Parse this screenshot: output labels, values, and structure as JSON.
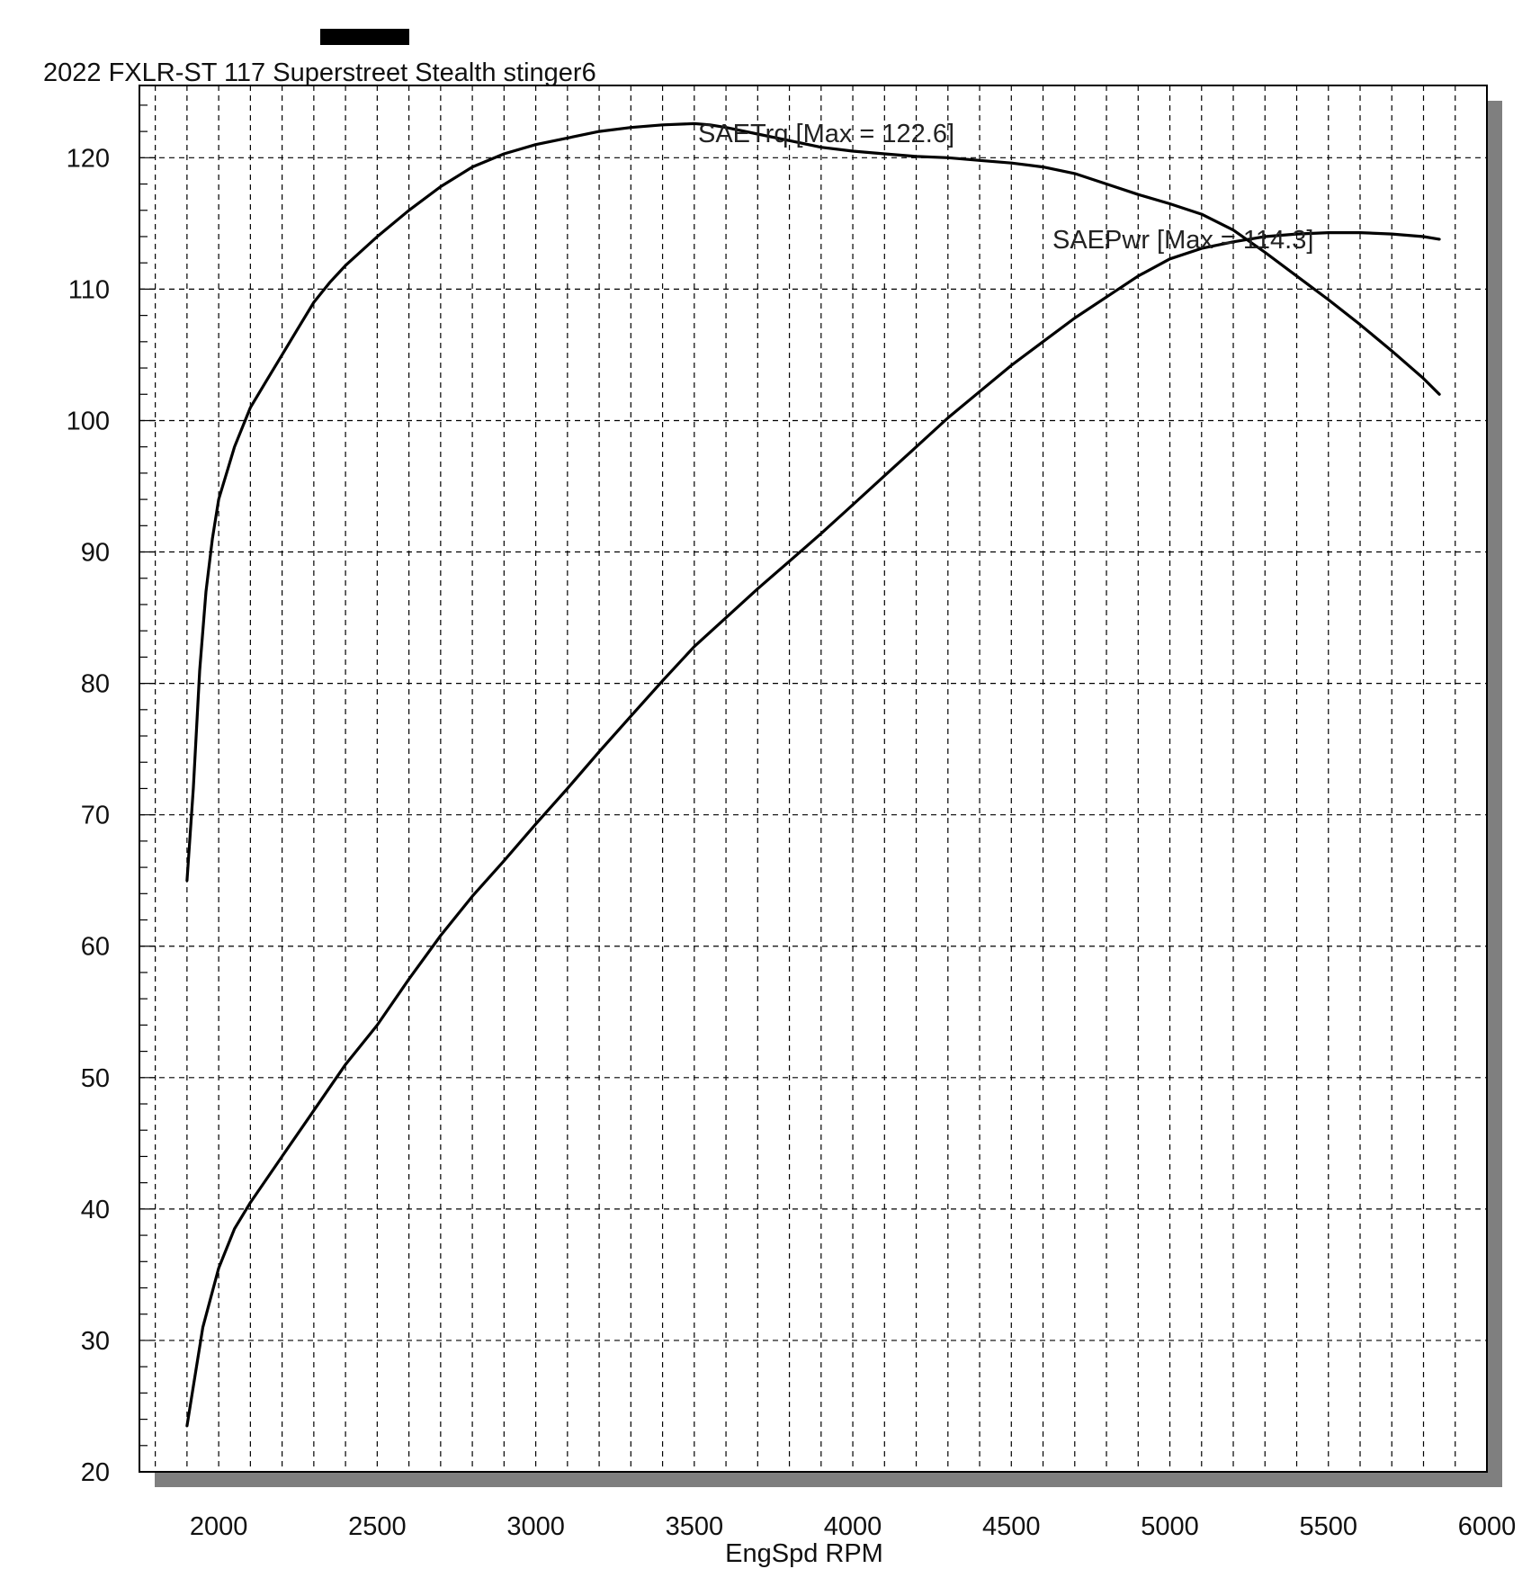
{
  "chart_data": {
    "type": "line",
    "title": "2022 FXLR-ST 117 Superstreet Stealth stinger6",
    "xlabel": "EngSpd  RPM",
    "ylabel": "",
    "xlim": [
      1750,
      6000
    ],
    "ylim": [
      20,
      125.5
    ],
    "x_ticks": [
      2000,
      2500,
      3000,
      3500,
      4000,
      4500,
      5000,
      5500,
      6000
    ],
    "y_ticks": [
      20,
      30,
      40,
      50,
      60,
      70,
      80,
      90,
      100,
      110,
      120
    ],
    "grid": true,
    "series": [
      {
        "name": "SAETrq",
        "annotation": "SAETrq [Max = 122.6]",
        "x": [
          1900,
          1920,
          1940,
          1960,
          1980,
          2000,
          2050,
          2100,
          2150,
          2200,
          2250,
          2300,
          2350,
          2400,
          2500,
          2600,
          2700,
          2800,
          2900,
          3000,
          3100,
          3200,
          3300,
          3400,
          3500,
          3550,
          3600,
          3700,
          3800,
          3900,
          4000,
          4100,
          4200,
          4300,
          4400,
          4500,
          4600,
          4700,
          4800,
          4900,
          5000,
          5100,
          5200,
          5300,
          5400,
          5500,
          5600,
          5700,
          5800,
          5850
        ],
        "y": [
          65,
          72,
          81,
          87,
          91,
          94,
          98,
          101,
          103,
          105,
          107,
          109,
          110.5,
          111.8,
          114,
          116,
          117.8,
          119.3,
          120.3,
          121,
          121.5,
          122,
          122.3,
          122.5,
          122.6,
          122.5,
          122.3,
          121.8,
          121.3,
          120.8,
          120.5,
          120.3,
          120.1,
          120,
          119.8,
          119.6,
          119.3,
          118.8,
          118,
          117.2,
          116.5,
          115.7,
          114.5,
          112.8,
          111,
          109.2,
          107.3,
          105.3,
          103.2,
          102
        ]
      },
      {
        "name": "SAEPwr",
        "annotation": "SAEPwr [Max = 114.3]",
        "x": [
          1900,
          1920,
          1950,
          2000,
          2050,
          2100,
          2200,
          2300,
          2400,
          2500,
          2600,
          2700,
          2800,
          2900,
          3000,
          3100,
          3200,
          3300,
          3400,
          3500,
          3600,
          3700,
          3800,
          3900,
          4000,
          4100,
          4200,
          4300,
          4400,
          4500,
          4600,
          4700,
          4800,
          4900,
          5000,
          5100,
          5200,
          5300,
          5400,
          5500,
          5600,
          5700,
          5800,
          5850
        ],
        "y": [
          23.5,
          26.5,
          31,
          35.5,
          38.5,
          40.5,
          44,
          47.5,
          51,
          54,
          57.5,
          60.8,
          63.8,
          66.5,
          69.3,
          72,
          74.8,
          77.5,
          80.2,
          82.8,
          85,
          87.2,
          89.3,
          91.4,
          93.6,
          95.8,
          98,
          100.2,
          102.2,
          104.2,
          106,
          107.8,
          109.4,
          111,
          112.3,
          113.1,
          113.6,
          114,
          114.2,
          114.3,
          114.3,
          114.2,
          114,
          113.8
        ]
      }
    ]
  }
}
